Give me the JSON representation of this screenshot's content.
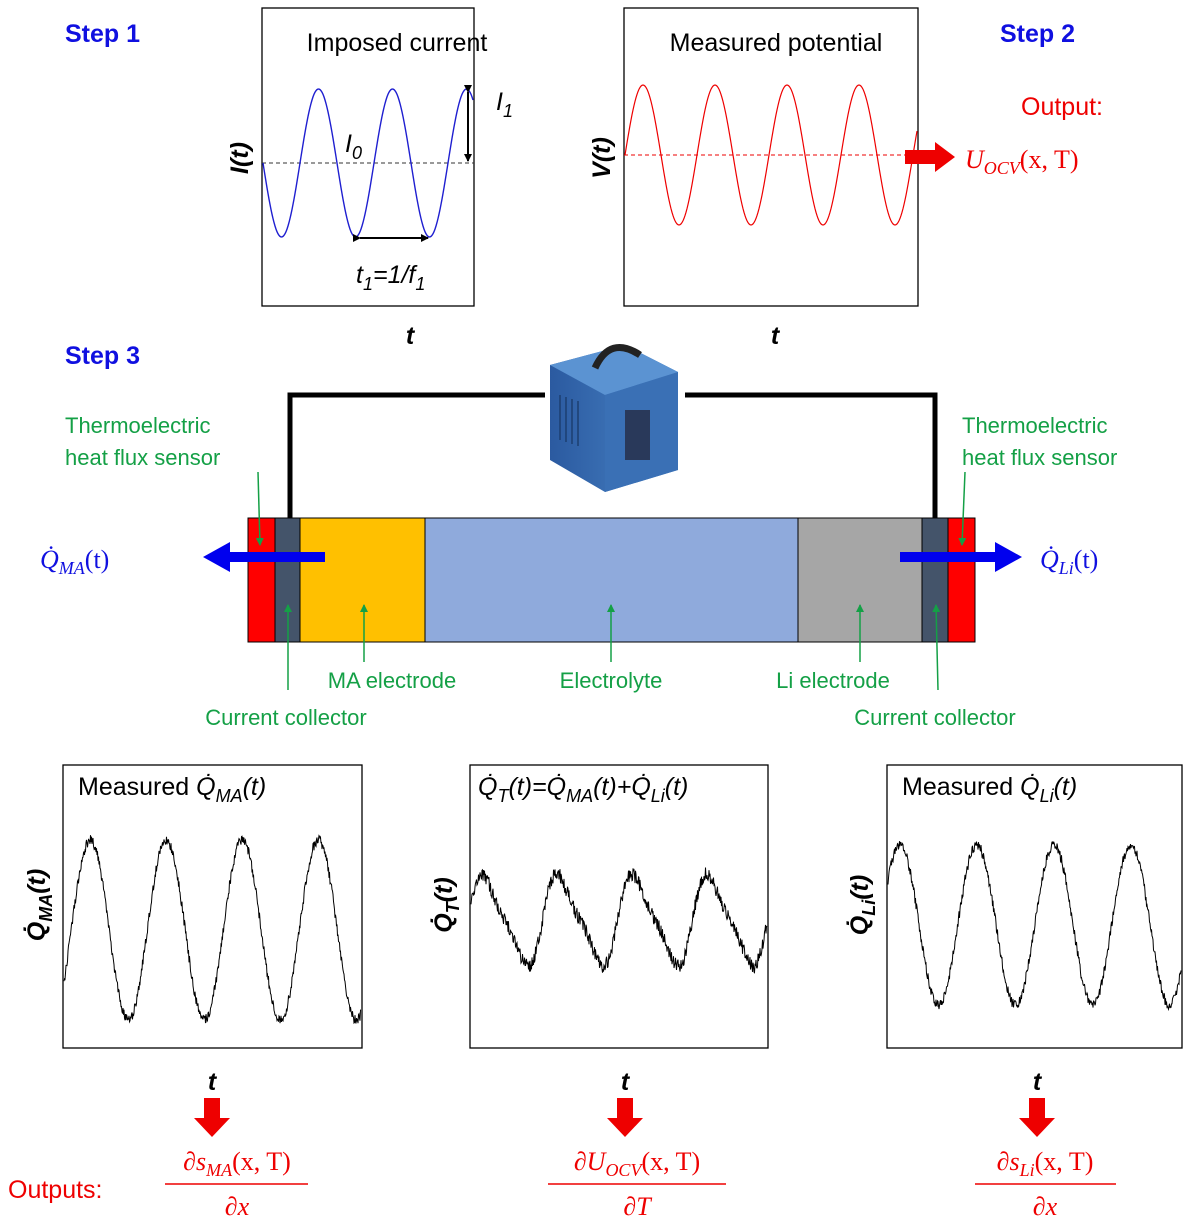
{
  "steps": {
    "step1": "Step 1",
    "step2": "Step 2",
    "step3": "Step 3"
  },
  "panel_current": {
    "title": "Imposed current",
    "y_label": "I(t)",
    "x_label": "t",
    "i0": {
      "base": "I",
      "sub": "0"
    },
    "i1": {
      "base": "I",
      "sub": "1"
    },
    "period": {
      "t": "t",
      "t_sub": "1",
      "eq": "=1/f",
      "f_sub": "1"
    }
  },
  "panel_potential": {
    "title": "Measured potential",
    "y_label": "V(t)",
    "x_label": "t"
  },
  "output_ocv": {
    "label": "Output:",
    "base": "U",
    "sub": "OCV",
    "args": "(x, T)"
  },
  "cell": {
    "sensor_left": [
      "Thermoelectric",
      "heat flux sensor"
    ],
    "sensor_right": [
      "Thermoelectric",
      "heat flux sensor"
    ],
    "flux_left": {
      "symbol": "Q̇",
      "sub": "MA",
      "args": "(t)"
    },
    "flux_right": {
      "symbol": "Q̇",
      "sub": "Li",
      "args": "(t)"
    },
    "ma_electrode": "MA electrode",
    "electrolyte": "Electrolyte",
    "li_electrode": "Li electrode",
    "collector_left": "Current collector",
    "collector_right": "Current collector"
  },
  "panel_ma": {
    "prefix": "Measured ",
    "symbol": "Q̇",
    "sub": "MA",
    "args": "(t)",
    "y_symbol": "Q̇",
    "y_sub": "MA",
    "y_args": "(t)",
    "x_label": "t"
  },
  "panel_total": {
    "symbol": "Q̇",
    "sub": "T",
    "args": "(t)=",
    "s2": "Q̇",
    "sub2": "MA",
    "args2": "(t)+",
    "s3": "Q̇",
    "sub3": "Li",
    "args3": "(t)",
    "y_symbol": "Q̇",
    "y_sub": "T",
    "y_args": "(t)",
    "x_label": "t"
  },
  "panel_li": {
    "prefix": "Measured ",
    "symbol": "Q̇",
    "sub": "Li",
    "args": "(t)",
    "y_symbol": "Q̇",
    "y_sub": "Li",
    "y_args": "(t)",
    "x_label": "t"
  },
  "outputs": {
    "label": "Outputs:",
    "ma": {
      "num": "∂s",
      "sub": "MA",
      "args": "(x, T)",
      "den": "∂x"
    },
    "ocv": {
      "num": "∂U",
      "sub": "OCV",
      "args": "(x, T)",
      "den": "∂T"
    },
    "li": {
      "num": "∂s",
      "sub": "Li",
      "args": "(x, T)",
      "den": "∂x"
    }
  }
}
